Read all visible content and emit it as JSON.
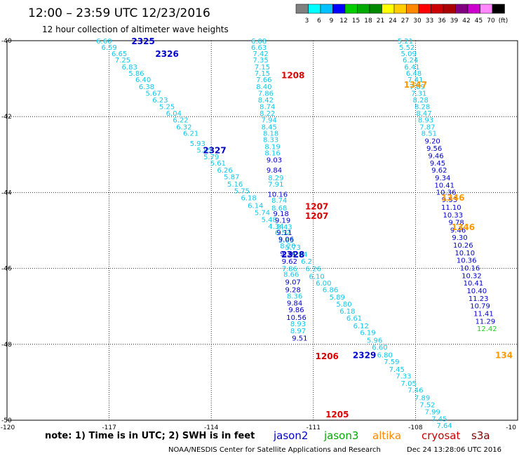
{
  "header": {
    "title": "12:00 – 23:59 UTC 12/23/2016",
    "subtitle": "12 hour collection of altimeter wave heights"
  },
  "color_scale": {
    "colors": [
      "#808080",
      "#00ffff",
      "#00c0ff",
      "#0000ff",
      "#00cc00",
      "#00aa00",
      "#008800",
      "#ffff00",
      "#ffcc00",
      "#ff8800",
      "#ff0000",
      "#cc0000",
      "#aa0000",
      "#800080",
      "#cc00cc",
      "#ff88ff",
      "#000000"
    ],
    "labels": [
      "3",
      "6",
      "9",
      "12",
      "15",
      "18",
      "21",
      "24",
      "27",
      "30",
      "33",
      "36",
      "39",
      "42",
      "45",
      "70",
      "(ft)"
    ]
  },
  "chart_data": {
    "type": "scatter",
    "title": "12:00 – 23:59 UTC 12/23/2016",
    "subtitle": "12 hour collection of altimeter wave heights",
    "x_ticks": [
      "-120",
      "-117",
      "-114",
      "-111",
      "-108",
      "-10"
    ],
    "y_ticks": [
      "-40",
      "-42",
      "-44",
      "-46",
      "-48",
      "-50"
    ],
    "xlim": [
      -120,
      -105
    ],
    "ylim": [
      -50,
      -40
    ],
    "grid": true,
    "tracks": [
      {
        "satellite": "jason2",
        "label": "2325",
        "lon": -116.0,
        "lat": -40.0
      },
      {
        "satellite": "jason2",
        "label": "2326",
        "lon": -115.3,
        "lat": -40.33
      },
      {
        "satellite": "jason2",
        "label": "2327",
        "lon": -113.9,
        "lat": -42.87
      },
      {
        "satellite": "jason2",
        "label": "2328",
        "lon": -111.6,
        "lat": -45.62
      },
      {
        "satellite": "jason2",
        "label": "2329",
        "lon": -109.5,
        "lat": -48.27
      },
      {
        "satellite": "cryosat",
        "label": "1208",
        "lon": -111.6,
        "lat": -40.9
      },
      {
        "satellite": "cryosat",
        "label": "1207",
        "lon": -110.9,
        "lat": -44.35
      },
      {
        "satellite": "cryosat",
        "label": "1207",
        "lon": -110.9,
        "lat": -44.6
      },
      {
        "satellite": "cryosat",
        "label": "1206",
        "lon": -110.6,
        "lat": -48.3
      },
      {
        "satellite": "cryosat",
        "label": "1205",
        "lon": -110.3,
        "lat": -49.83
      },
      {
        "satellite": "altika",
        "label": "1347",
        "lon": -108.0,
        "lat": -41.15
      },
      {
        "satellite": "altika",
        "label": "1346",
        "lon": -106.9,
        "lat": -44.12
      },
      {
        "satellite": "altika",
        "label": "1346",
        "lon": -106.6,
        "lat": -44.9
      },
      {
        "satellite": "altika",
        "label": "134",
        "lon": -105.4,
        "lat": -48.27
      }
    ],
    "points": [
      {
        "lon": -117.15,
        "lat": -40.0,
        "swh": "6.60"
      },
      {
        "lon": -117.0,
        "lat": -40.17,
        "swh": "6.59"
      },
      {
        "lon": -116.7,
        "lat": -40.33,
        "swh": "6.65"
      },
      {
        "lon": -116.6,
        "lat": -40.5,
        "swh": "7.25"
      },
      {
        "lon": -116.4,
        "lat": -40.68,
        "swh": "6.83"
      },
      {
        "lon": -116.2,
        "lat": -40.85,
        "swh": "5.86"
      },
      {
        "lon": -116.0,
        "lat": -41.02,
        "swh": "6.40"
      },
      {
        "lon": -115.9,
        "lat": -41.2,
        "swh": "6.38"
      },
      {
        "lon": -115.7,
        "lat": -41.38,
        "swh": "5.67"
      },
      {
        "lon": -115.5,
        "lat": -41.55,
        "swh": "6.23"
      },
      {
        "lon": -115.3,
        "lat": -41.73,
        "swh": "5.25"
      },
      {
        "lon": -115.1,
        "lat": -41.9,
        "swh": "6.04"
      },
      {
        "lon": -114.9,
        "lat": -42.08,
        "swh": "6.22"
      },
      {
        "lon": -114.8,
        "lat": -42.26,
        "swh": "6.32"
      },
      {
        "lon": -114.6,
        "lat": -42.43,
        "swh": "6.21"
      },
      {
        "lon": -114.4,
        "lat": -42.7,
        "swh": "5.93"
      },
      {
        "lon": -114.2,
        "lat": -42.87,
        "swh": "5.85"
      },
      {
        "lon": -114.0,
        "lat": -43.05,
        "swh": "5.79"
      },
      {
        "lon": -113.8,
        "lat": -43.22,
        "swh": "5.61"
      },
      {
        "lon": -113.6,
        "lat": -43.4,
        "swh": "6.26"
      },
      {
        "lon": -113.4,
        "lat": -43.58,
        "swh": "5.87"
      },
      {
        "lon": -113.3,
        "lat": -43.77,
        "swh": "5.16"
      },
      {
        "lon": -113.1,
        "lat": -43.95,
        "swh": "5.75"
      },
      {
        "lon": -112.9,
        "lat": -44.13,
        "swh": "6.18"
      },
      {
        "lon": -112.7,
        "lat": -44.33,
        "swh": "6.14"
      },
      {
        "lon": -112.5,
        "lat": -44.52,
        "swh": "5.74"
      },
      {
        "lon": -112.3,
        "lat": -44.7,
        "swh": "5.48"
      },
      {
        "lon": -112.1,
        "lat": -44.88,
        "swh": "4.34"
      },
      {
        "lon": -111.9,
        "lat": -45.05,
        "swh": "6.52"
      },
      {
        "lon": -111.8,
        "lat": -45.25,
        "swh": "5.65"
      },
      {
        "lon": -111.6,
        "lat": -45.43,
        "swh": "5.73"
      },
      {
        "lon": -111.4,
        "lat": -45.62,
        "swh": "5.94"
      },
      {
        "lon": -111.2,
        "lat": -45.8,
        "swh": "6.2"
      },
      {
        "lon": -111.0,
        "lat": -46.0,
        "swh": "6.26"
      },
      {
        "lon": -110.9,
        "lat": -46.2,
        "swh": "6.10"
      },
      {
        "lon": -110.7,
        "lat": -46.38,
        "swh": "6.00"
      },
      {
        "lon": -110.5,
        "lat": -46.55,
        "swh": "6.86"
      },
      {
        "lon": -110.3,
        "lat": -46.75,
        "swh": "5.89"
      },
      {
        "lon": -110.1,
        "lat": -46.93,
        "swh": "5.80"
      },
      {
        "lon": -110.0,
        "lat": -47.12,
        "swh": "6.18"
      },
      {
        "lon": -109.8,
        "lat": -47.3,
        "swh": "6.61"
      },
      {
        "lon": -109.6,
        "lat": -47.5,
        "swh": "6.12"
      },
      {
        "lon": -109.4,
        "lat": -47.68,
        "swh": "6.19"
      },
      {
        "lon": -109.2,
        "lat": -47.88,
        "swh": "5.96"
      },
      {
        "lon": -109.05,
        "lat": -48.07,
        "swh": "6.60"
      },
      {
        "lon": -108.9,
        "lat": -48.27,
        "swh": "6.80"
      },
      {
        "lon": -108.7,
        "lat": -48.45,
        "swh": "7.59"
      },
      {
        "lon": -108.55,
        "lat": -48.65,
        "swh": "7.45"
      },
      {
        "lon": -108.35,
        "lat": -48.83,
        "swh": "7.33"
      },
      {
        "lon": -108.2,
        "lat": -49.02,
        "swh": "7.05"
      },
      {
        "lon": -108.0,
        "lat": -49.2,
        "swh": "7.46"
      },
      {
        "lon": -107.8,
        "lat": -49.4,
        "swh": "7.89"
      },
      {
        "lon": -107.65,
        "lat": -49.58,
        "swh": "7.52"
      },
      {
        "lon": -107.5,
        "lat": -49.77,
        "swh": "7.99"
      },
      {
        "lon": -107.3,
        "lat": -49.95,
        "swh": "7.45"
      },
      {
        "lon": -107.15,
        "lat": -50.13,
        "swh": "7.64"
      },
      {
        "lon": -112.6,
        "lat": -40.0,
        "swh": "6.08"
      },
      {
        "lon": -112.6,
        "lat": -40.17,
        "swh": "6.63"
      },
      {
        "lon": -112.55,
        "lat": -40.33,
        "swh": "7.42"
      },
      {
        "lon": -112.55,
        "lat": -40.5,
        "swh": "7.35"
      },
      {
        "lon": -112.5,
        "lat": -40.68,
        "swh": "7.15"
      },
      {
        "lon": -112.5,
        "lat": -40.85,
        "swh": "7.15"
      },
      {
        "lon": -112.45,
        "lat": -41.02,
        "swh": "7.66"
      },
      {
        "lon": -112.45,
        "lat": -41.2,
        "swh": "8.40"
      },
      {
        "lon": -112.4,
        "lat": -41.38,
        "swh": "7.86"
      },
      {
        "lon": -112.4,
        "lat": -41.55,
        "swh": "8.42"
      },
      {
        "lon": -112.35,
        "lat": -41.73,
        "swh": "8.74"
      },
      {
        "lon": -112.35,
        "lat": -41.9,
        "swh": "8.22"
      },
      {
        "lon": -112.3,
        "lat": -42.08,
        "swh": "7.94"
      },
      {
        "lon": -112.3,
        "lat": -42.26,
        "swh": "8.45"
      },
      {
        "lon": -112.25,
        "lat": -42.43,
        "swh": "8.18"
      },
      {
        "lon": -112.25,
        "lat": -42.6,
        "swh": "8.33"
      },
      {
        "lon": -112.2,
        "lat": -42.78,
        "swh": "8.19"
      },
      {
        "lon": -112.2,
        "lat": -42.95,
        "swh": "8.16"
      },
      {
        "lon": -112.15,
        "lat": -43.13,
        "swh": "9.03"
      },
      {
        "lon": -112.15,
        "lat": -43.4,
        "swh": "9.84"
      },
      {
        "lon": -112.1,
        "lat": -43.6,
        "swh": "8.29"
      },
      {
        "lon": -112.1,
        "lat": -43.77,
        "swh": "7.91"
      },
      {
        "lon": -112.05,
        "lat": -44.04,
        "swh": "10.16"
      },
      {
        "lon": -112.0,
        "lat": -44.2,
        "swh": "8.74"
      },
      {
        "lon": -112.0,
        "lat": -44.4,
        "swh": "8.68"
      },
      {
        "lon": -111.95,
        "lat": -44.55,
        "swh": "9.18"
      },
      {
        "lon": -111.9,
        "lat": -44.72,
        "swh": "9.19"
      },
      {
        "lon": -111.85,
        "lat": -44.9,
        "swh": "8.43"
      },
      {
        "lon": -111.85,
        "lat": -45.05,
        "swh": "9.11"
      },
      {
        "lon": -111.8,
        "lat": -45.22,
        "swh": "9.06"
      },
      {
        "lon": -111.75,
        "lat": -45.4,
        "swh": "8.20"
      },
      {
        "lon": -111.75,
        "lat": -45.6,
        "swh": "9.34"
      },
      {
        "lon": -111.7,
        "lat": -45.8,
        "swh": "9.62"
      },
      {
        "lon": -111.7,
        "lat": -46.0,
        "swh": "7.86"
      },
      {
        "lon": -111.65,
        "lat": -46.15,
        "swh": "8.66"
      },
      {
        "lon": -111.6,
        "lat": -46.35,
        "swh": "9.07"
      },
      {
        "lon": -111.6,
        "lat": -46.55,
        "swh": "9.28"
      },
      {
        "lon": -111.55,
        "lat": -46.72,
        "swh": "8.36"
      },
      {
        "lon": -111.55,
        "lat": -46.9,
        "swh": "9.84"
      },
      {
        "lon": -111.5,
        "lat": -47.08,
        "swh": "9.86"
      },
      {
        "lon": -111.5,
        "lat": -47.28,
        "swh": "10.56"
      },
      {
        "lon": -111.45,
        "lat": -47.45,
        "swh": "8.93"
      },
      {
        "lon": -111.45,
        "lat": -47.63,
        "swh": "8.97"
      },
      {
        "lon": -111.4,
        "lat": -47.83,
        "swh": "9.51"
      },
      {
        "lon": -108.3,
        "lat": -40.0,
        "swh": "5.21"
      },
      {
        "lon": -108.25,
        "lat": -40.17,
        "swh": "5.52"
      },
      {
        "lon": -108.2,
        "lat": -40.33,
        "swh": "5.09"
      },
      {
        "lon": -108.15,
        "lat": -40.5,
        "swh": "6.24"
      },
      {
        "lon": -108.1,
        "lat": -40.68,
        "swh": "6.41"
      },
      {
        "lon": -108.05,
        "lat": -40.85,
        "swh": "6.48"
      },
      {
        "lon": -108.0,
        "lat": -41.02,
        "swh": "7.41"
      },
      {
        "lon": -107.95,
        "lat": -41.2,
        "swh": "7.89"
      },
      {
        "lon": -107.9,
        "lat": -41.38,
        "swh": "7.31"
      },
      {
        "lon": -107.85,
        "lat": -41.55,
        "swh": "8.28"
      },
      {
        "lon": -107.8,
        "lat": -41.73,
        "swh": "8.28"
      },
      {
        "lon": -107.75,
        "lat": -41.9,
        "swh": "8.47"
      },
      {
        "lon": -107.7,
        "lat": -42.08,
        "swh": "8.93"
      },
      {
        "lon": -107.65,
        "lat": -42.26,
        "swh": "7.87"
      },
      {
        "lon": -107.6,
        "lat": -42.43,
        "swh": "8.51"
      },
      {
        "lon": -107.5,
        "lat": -42.63,
        "swh": "9.20"
      },
      {
        "lon": -107.45,
        "lat": -42.83,
        "swh": "9.56"
      },
      {
        "lon": -107.4,
        "lat": -43.02,
        "swh": "9.46"
      },
      {
        "lon": -107.35,
        "lat": -43.22,
        "swh": "9.45"
      },
      {
        "lon": -107.3,
        "lat": -43.4,
        "swh": "9.62"
      },
      {
        "lon": -107.2,
        "lat": -43.6,
        "swh": "9.34"
      },
      {
        "lon": -107.15,
        "lat": -43.8,
        "swh": "10.41"
      },
      {
        "lon": -107.1,
        "lat": -43.98,
        "swh": "10.36"
      },
      {
        "lon": -107.0,
        "lat": -44.18,
        "swh": "9.53"
      },
      {
        "lon": -106.95,
        "lat": -44.38,
        "swh": "11.10"
      },
      {
        "lon": -106.9,
        "lat": -44.58,
        "swh": "10.33"
      },
      {
        "lon": -106.8,
        "lat": -44.78,
        "swh": "9.78"
      },
      {
        "lon": -106.75,
        "lat": -44.98,
        "swh": "9.46"
      },
      {
        "lon": -106.7,
        "lat": -45.18,
        "swh": "9.30"
      },
      {
        "lon": -106.6,
        "lat": -45.38,
        "swh": "10.26"
      },
      {
        "lon": -106.55,
        "lat": -45.58,
        "swh": "10.10"
      },
      {
        "lon": -106.5,
        "lat": -45.78,
        "swh": "10.36"
      },
      {
        "lon": -106.4,
        "lat": -45.98,
        "swh": "10.16"
      },
      {
        "lon": -106.35,
        "lat": -46.18,
        "swh": "10.32"
      },
      {
        "lon": -106.3,
        "lat": -46.38,
        "swh": "10.41"
      },
      {
        "lon": -106.2,
        "lat": -46.58,
        "swh": "10.40"
      },
      {
        "lon": -106.15,
        "lat": -46.78,
        "swh": "11.23"
      },
      {
        "lon": -106.1,
        "lat": -46.98,
        "swh": "10.79"
      },
      {
        "lon": -106.0,
        "lat": -47.18,
        "swh": "11.41"
      },
      {
        "lon": -105.95,
        "lat": -47.38,
        "swh": "11.29"
      },
      {
        "lon": -105.9,
        "lat": -47.58,
        "swh": "12.42"
      }
    ]
  },
  "legend": {
    "note": "note: 1) Time is in UTC; 2) SWH is in feet",
    "items": [
      {
        "name": "jason2",
        "color": "#0000cc"
      },
      {
        "name": "jason3",
        "color": "#00aa00"
      },
      {
        "name": "altika",
        "color": "#ff8800"
      },
      {
        "name": "cryosat",
        "color": "#cc0000"
      },
      {
        "name": "s3a",
        "color": "#800000"
      }
    ]
  },
  "footer": {
    "credit": "NOAA/NESDIS Center for Satellite Applications and Research",
    "timestamp": "Dec 24 13:28:06 UTC 2016"
  },
  "satellite_colors": {
    "jason2": "#0000cc",
    "jason3": "#00aa00",
    "altika": "#ff9900",
    "cryosat": "#dd0000",
    "s3a": "#800000"
  }
}
